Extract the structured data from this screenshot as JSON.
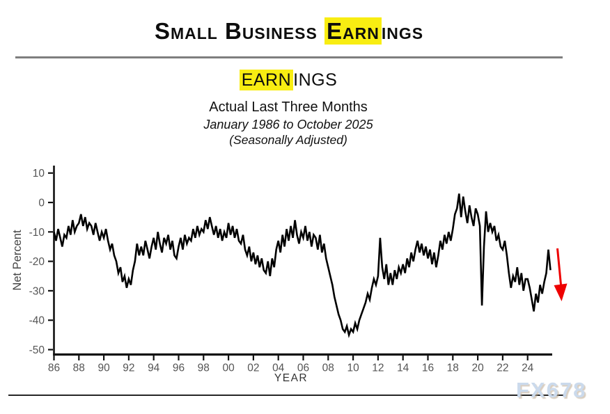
{
  "header": {
    "title_pre": "Small Business ",
    "title_highlight": "Earn",
    "title_post": "ings",
    "highlight_color": "#f8ed12"
  },
  "subtitle": {
    "line1_highlight": "EARN",
    "line1_post": "INGS",
    "line2": "Actual Last Three Months",
    "line3": "January 1986 to October 2025",
    "line4": "(Seasonally Adjusted)"
  },
  "watermark": "FX678",
  "chart_data": {
    "type": "line",
    "title": "Small Business Earnings",
    "series_name": "Earnings - Actual Last Three Months",
    "xlabel": "YEAR",
    "ylabel": "Net Percent",
    "ylim": [
      -50,
      10
    ],
    "grid": false,
    "legend": "none",
    "yticks": [
      10,
      0,
      -10,
      -20,
      -30,
      -40,
      -50
    ],
    "xtick_labels": [
      "86",
      "88",
      "90",
      "92",
      "94",
      "96",
      "98",
      "00",
      "02",
      "04",
      "06",
      "08",
      "10",
      "12",
      "14",
      "16",
      "18",
      "20",
      "22",
      "24"
    ],
    "xtick_years": [
      1986,
      1988,
      1990,
      1992,
      1994,
      1996,
      1998,
      2000,
      2002,
      2004,
      2006,
      2008,
      2010,
      2012,
      2014,
      2016,
      2018,
      2020,
      2022,
      2024
    ],
    "x_start_year": 1986,
    "x_points_per_year": 6,
    "x_end": "October 2025",
    "line_color": "#000000",
    "values": [
      -10,
      -13,
      -9,
      -12,
      -15,
      -11,
      -12,
      -8,
      -11,
      -6,
      -10,
      -8,
      -7,
      -4,
      -8,
      -5,
      -9,
      -7,
      -8,
      -11,
      -7,
      -10,
      -13,
      -10,
      -12,
      -9,
      -13,
      -16,
      -14,
      -18,
      -20,
      -24,
      -22,
      -27,
      -25,
      -29,
      -26,
      -28,
      -23,
      -20,
      -14,
      -18,
      -15,
      -18,
      -13,
      -16,
      -19,
      -15,
      -12,
      -16,
      -10,
      -14,
      -17,
      -12,
      -14,
      -11,
      -16,
      -13,
      -18,
      -19,
      -15,
      -12,
      -16,
      -11,
      -14,
      -12,
      -13,
      -9,
      -12,
      -8,
      -11,
      -9,
      -10,
      -6,
      -9,
      -5,
      -8,
      -11,
      -8,
      -12,
      -9,
      -13,
      -10,
      -12,
      -7,
      -11,
      -8,
      -12,
      -9,
      -13,
      -14,
      -11,
      -16,
      -18,
      -15,
      -20,
      -17,
      -21,
      -18,
      -22,
      -19,
      -23,
      -24,
      -20,
      -25,
      -19,
      -22,
      -16,
      -13,
      -17,
      -11,
      -15,
      -9,
      -13,
      -8,
      -12,
      -6,
      -11,
      -14,
      -10,
      -12,
      -8,
      -13,
      -10,
      -15,
      -11,
      -12,
      -16,
      -11,
      -17,
      -14,
      -19,
      -22,
      -25,
      -28,
      -32,
      -35,
      -38,
      -40,
      -43,
      -44,
      -42,
      -45,
      -43,
      -44,
      -41,
      -43,
      -40,
      -38,
      -36,
      -34,
      -31,
      -33,
      -29,
      -26,
      -28,
      -25,
      -12,
      -22,
      -26,
      -21,
      -28,
      -24,
      -28,
      -23,
      -26,
      -22,
      -24,
      -21,
      -24,
      -19,
      -22,
      -17,
      -20,
      -16,
      -13,
      -17,
      -14,
      -18,
      -15,
      -19,
      -16,
      -21,
      -17,
      -22,
      -18,
      -13,
      -16,
      -11,
      -14,
      -10,
      -13,
      -9,
      -4,
      -2,
      3,
      -5,
      2,
      -3,
      -7,
      -1,
      -5,
      -8,
      -2,
      -4,
      -8,
      -35,
      -15,
      -3,
      -10,
      -7,
      -10,
      -8,
      -13,
      -11,
      -15,
      -16,
      -13,
      -18,
      -24,
      -29,
      -25,
      -27,
      -22,
      -28,
      -24,
      -30,
      -26,
      -26,
      -29,
      -33,
      -37,
      -31,
      -34,
      -28,
      -31,
      -27,
      -24,
      -16,
      -23
    ],
    "trend_arrow": {
      "direction": "down",
      "color": "#ee0000",
      "position": "end-of-series"
    }
  }
}
